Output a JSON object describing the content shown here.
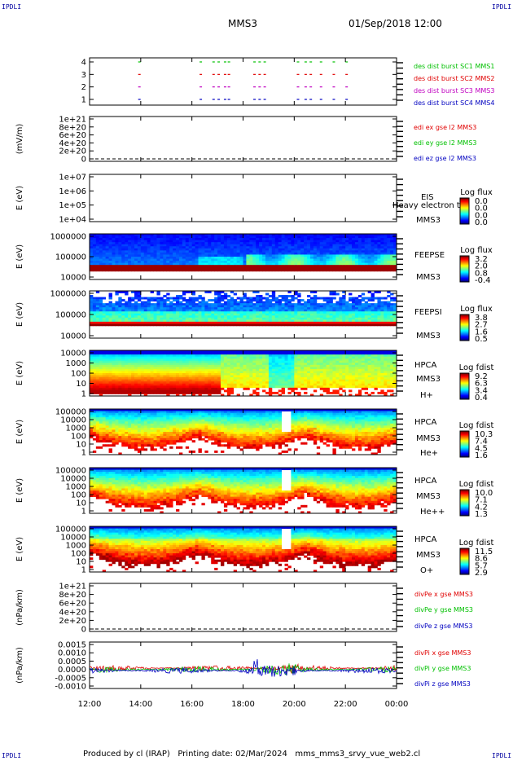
{
  "corners": {
    "tl": "IPDLI",
    "tr": "IPDLI",
    "bl": "IPDLI",
    "br": "IPDLI"
  },
  "header": {
    "spacecraft": "MMS3",
    "datetime": "01/Sep/2018 12:00"
  },
  "footer": {
    "text": "Produced by cl (IRAP)   Printing date: 02/Mar/2024   mms_mms3_srvy_vue_web2.cl"
  },
  "xaxis": {
    "ticks": [
      "12:00",
      "14:00",
      "16:00",
      "18:00",
      "20:00",
      "22:00",
      "00:00"
    ],
    "range_hours": [
      12,
      24
    ]
  },
  "colors": {
    "red": "#e00000",
    "green": "#00c000",
    "blue": "#0000c0",
    "magenta": "#c000c0"
  },
  "chart_data": [
    {
      "type": "scatter",
      "name": "burst-availability",
      "yticks": [
        "1",
        "2",
        "3",
        "4"
      ],
      "ylim": [
        0.5,
        4.5
      ],
      "series": [
        {
          "name": "des dist burst SC1 MMS1",
          "row": 4,
          "color": "#00c000",
          "x": [
            13.9,
            16.3,
            16.8,
            17.0,
            17.25,
            17.4,
            18.4,
            18.6,
            18.8,
            20.1,
            20.4,
            20.6,
            21.0,
            21.5,
            22.0
          ]
        },
        {
          "name": "des dist burst SC2 MMS2",
          "row": 3,
          "color": "#e00000",
          "x": [
            13.9,
            16.3,
            16.8,
            17.0,
            17.25,
            17.4,
            18.4,
            18.6,
            18.8,
            20.1,
            20.4,
            20.6,
            21.0,
            21.5,
            22.0
          ]
        },
        {
          "name": "des dist burst SC3 MMS3",
          "row": 2,
          "color": "#c000c0",
          "x": [
            13.9,
            16.3,
            16.8,
            17.0,
            17.25,
            17.4,
            18.4,
            18.6,
            18.8,
            20.1,
            20.4,
            20.6,
            21.0,
            21.5,
            22.0
          ]
        },
        {
          "name": "des dist burst SC4 MMS4",
          "row": 1,
          "color": "#0000c0",
          "x": [
            13.9,
            16.3,
            16.8,
            17.0,
            17.25,
            17.4,
            18.4,
            18.6,
            18.8,
            20.1,
            20.4,
            20.6,
            21.0,
            21.5,
            22.0
          ]
        }
      ]
    },
    {
      "type": "line",
      "name": "edi-field",
      "ylabel": "(mV/m)",
      "yticks": [
        "0",
        "2e+20",
        "4e+20",
        "6e+20",
        "8e+20",
        "1e+21"
      ],
      "ylim": [
        -1e+20,
        1.05e+21
      ],
      "series": [
        {
          "name": "edi ex gse l2 MMS3",
          "color": "#e00000"
        },
        {
          "name": "edi ey gse l2 MMS3",
          "color": "#00c000"
        },
        {
          "name": "edi ez gse l2 MMS3",
          "color": "#0000c0"
        }
      ]
    },
    {
      "type": "heatmap",
      "name": "eis",
      "ylabel": "E (eV)",
      "yticks": [
        "1e+04",
        "1e+05",
        "1e+06",
        "1e+07"
      ],
      "ylim": [
        10000.0,
        10000000.0
      ],
      "log_y": true,
      "instrument": "EIS",
      "spacecraft": "MMS3",
      "overlay": "Heavy electron to",
      "colorbar": {
        "title": "Log flux",
        "ticks": [
          "0.0",
          "0.0",
          "0.0",
          "0.0"
        ]
      }
    },
    {
      "type": "heatmap",
      "name": "feepse",
      "ylabel": "E (eV)",
      "yticks": [
        "10000",
        "100000",
        "1000000"
      ],
      "ylim": [
        10000.0,
        1000000.0
      ],
      "log_y": true,
      "instrument": "FEEPSE",
      "spacecraft": "MMS3",
      "colorbar": {
        "title": "Log flux",
        "ticks": [
          "3.2",
          "2.0",
          "0.8",
          "-0.4"
        ]
      }
    },
    {
      "type": "heatmap",
      "name": "feepsi",
      "ylabel": "E (eV)",
      "yticks": [
        "10000",
        "100000",
        "1000000"
      ],
      "ylim": [
        10000.0,
        1000000.0
      ],
      "log_y": true,
      "instrument": "FEEPSI",
      "spacecraft": "MMS3",
      "colorbar": {
        "title": "Log flux",
        "ticks": [
          "3.8",
          "2.7",
          "1.6",
          "0.5"
        ]
      }
    },
    {
      "type": "heatmap",
      "name": "hpca-h",
      "ylabel": "E (eV)",
      "yticks": [
        "1",
        "10",
        "100",
        "1000",
        "10000"
      ],
      "ylim": [
        1,
        30000.0
      ],
      "log_y": true,
      "instrument": "HPCA",
      "spacecraft": "MMS3",
      "species": "H+",
      "colorbar": {
        "title": "Log fdist",
        "ticks": [
          "9.2",
          "6.3",
          "3.4",
          "0.4"
        ]
      }
    },
    {
      "type": "heatmap",
      "name": "hpca-he",
      "ylabel": "E (eV)",
      "yticks": [
        "1",
        "10",
        "100",
        "1000",
        "10000",
        "100000"
      ],
      "ylim": [
        1,
        100000.0
      ],
      "log_y": true,
      "instrument": "HPCA",
      "spacecraft": "MMS3",
      "species": "He+",
      "colorbar": {
        "title": "Log fdist",
        "ticks": [
          "10.3",
          "7.4",
          "4.5",
          "1.6"
        ]
      }
    },
    {
      "type": "heatmap",
      "name": "hpca-he2",
      "ylabel": "E (eV)",
      "yticks": [
        "1",
        "10",
        "100",
        "1000",
        "10000",
        "100000"
      ],
      "ylim": [
        1,
        100000.0
      ],
      "log_y": true,
      "instrument": "HPCA",
      "spacecraft": "MMS3",
      "species": "He++",
      "colorbar": {
        "title": "Log fdist",
        "ticks": [
          "10.0",
          "7.1",
          "4.2",
          "1.3"
        ]
      }
    },
    {
      "type": "heatmap",
      "name": "hpca-o",
      "ylabel": "E (eV)",
      "yticks": [
        "1",
        "10",
        "100",
        "1000",
        "10000",
        "100000"
      ],
      "ylim": [
        1,
        100000.0
      ],
      "log_y": true,
      "instrument": "HPCA",
      "spacecraft": "MMS3",
      "species": "O+",
      "colorbar": {
        "title": "Log fdist",
        "ticks": [
          "11.5",
          "8.6",
          "5.7",
          "2.9"
        ]
      }
    },
    {
      "type": "line",
      "name": "divpe",
      "ylabel": "(nPa/km)",
      "yticks": [
        "0",
        "2e+20",
        "4e+20",
        "6e+20",
        "8e+20",
        "1e+21"
      ],
      "ylim": [
        -1e+20,
        1.05e+21
      ],
      "series": [
        {
          "name": "divPe x gse MMS3",
          "color": "#e00000"
        },
        {
          "name": "divPe y gse MMS3",
          "color": "#00c000"
        },
        {
          "name": "divPe z gse MMS3",
          "color": "#0000c0"
        }
      ]
    },
    {
      "type": "line",
      "name": "divpi",
      "ylabel": "(nPa/km)",
      "yticks": [
        "-0.0010",
        "-0.0005",
        "0.0000",
        "0.0005",
        "0.0010",
        "0.0015"
      ],
      "ylim": [
        -0.0013,
        0.0017
      ],
      "series": [
        {
          "name": "divPi x gse MMS3",
          "color": "#e00000"
        },
        {
          "name": "divPi y gse MMS3",
          "color": "#00c000"
        },
        {
          "name": "divPi z gse MMS3",
          "color": "#0000c0"
        }
      ]
    }
  ]
}
